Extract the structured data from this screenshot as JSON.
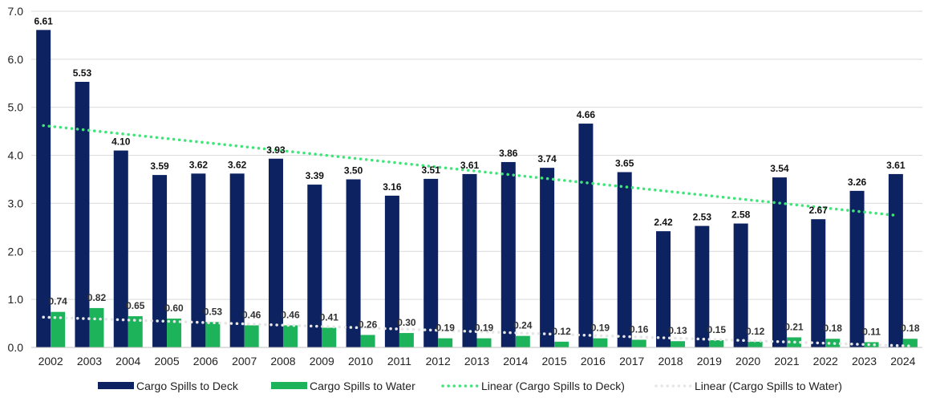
{
  "chart_data": {
    "type": "bar",
    "title": "",
    "xlabel": "",
    "ylabel": "",
    "ylim": [
      0,
      7
    ],
    "yticks": [
      "0.0",
      "1.0",
      "2.0",
      "3.0",
      "4.0",
      "5.0",
      "6.0",
      "7.0"
    ],
    "categories": [
      "2002",
      "2003",
      "2004",
      "2005",
      "2006",
      "2007",
      "2008",
      "2009",
      "2010",
      "2011",
      "2012",
      "2013",
      "2014",
      "2015",
      "2016",
      "2017",
      "2018",
      "2019",
      "2020",
      "2021",
      "2022",
      "2023",
      "2024"
    ],
    "series": [
      {
        "name": "Cargo Spills to Deck",
        "color": "#0d2260",
        "values": [
          6.61,
          5.53,
          4.1,
          3.59,
          3.62,
          3.62,
          3.93,
          3.39,
          3.5,
          3.16,
          3.51,
          3.61,
          3.86,
          3.74,
          4.66,
          3.65,
          2.42,
          2.53,
          2.58,
          3.54,
          2.67,
          3.26,
          3.61
        ],
        "labels": [
          "6.61",
          "5.53",
          "4.10",
          "3.59",
          "3.62",
          "3.62",
          "3.93",
          "3.39",
          "3.50",
          "3.16",
          "3.51",
          "3.61",
          "3.86",
          "3.74",
          "4.66",
          "3.65",
          "2.42",
          "2.53",
          "2.58",
          "3.54",
          "2.67",
          "3.26",
          "3.61"
        ]
      },
      {
        "name": "Cargo Spills to Water",
        "color": "#1db35a",
        "values": [
          0.74,
          0.82,
          0.65,
          0.6,
          0.53,
          0.46,
          0.46,
          0.41,
          0.26,
          0.3,
          0.19,
          0.19,
          0.24,
          0.12,
          0.19,
          0.16,
          0.13,
          0.15,
          0.12,
          0.21,
          0.18,
          0.11,
          0.18
        ],
        "labels": [
          "0.74",
          "0.82",
          "0.65",
          "0.60",
          "0.53",
          "0.46",
          "0.46",
          "0.41",
          "0.26",
          "0.30",
          "0.19",
          "0.19",
          "0.24",
          "0.12",
          "0.19",
          "0.16",
          "0.13",
          "0.15",
          "0.12",
          "0.21",
          "0.18",
          "0.11",
          "0.18"
        ]
      }
    ],
    "trendlines": [
      {
        "name": "Linear (Cargo Spills to Deck)",
        "color": "#3ee67a",
        "start": 4.62,
        "end": 2.75
      },
      {
        "name": "Linear (Cargo Spills to Water)",
        "color": "#e6e6e6",
        "start": 0.63,
        "end": 0.03
      }
    ],
    "legend_position": "bottom",
    "grid": true
  }
}
